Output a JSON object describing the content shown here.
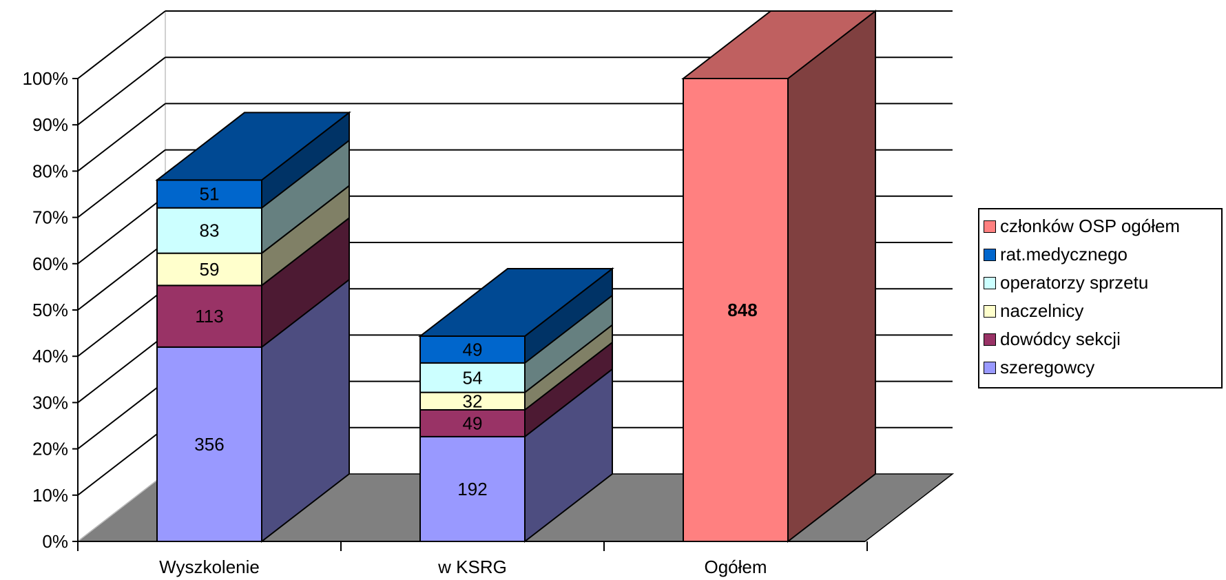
{
  "chart_data": {
    "type": "bar",
    "stacked": "percent",
    "three_d": true,
    "categories": [
      "Wyszkolenie",
      "w KSRG",
      "Ogółem"
    ],
    "y_ticks": [
      "0%",
      "10%",
      "20%",
      "30%",
      "40%",
      "50%",
      "60%",
      "70%",
      "80%",
      "90%",
      "100%"
    ],
    "ylim": [
      0,
      100
    ],
    "grid": true,
    "legend_position": "right",
    "series": [
      {
        "name": "szeregowcy",
        "color": "#9999ff",
        "values": [
          356,
          192,
          null
        ]
      },
      {
        "name": "dowódcy sekcji",
        "color": "#993366",
        "values": [
          113,
          49,
          null
        ]
      },
      {
        "name": "naczelnicy",
        "color": "#ffffcc",
        "values": [
          59,
          32,
          null
        ]
      },
      {
        "name": "operatorzy sprzetu",
        "color": "#ccffff",
        "values": [
          83,
          54,
          null
        ]
      },
      {
        "name": "rat.medycznego",
        "color": "#0066cc",
        "values": [
          51,
          49,
          null
        ]
      },
      {
        "name": "członków OSP ogółem",
        "color": "#ff8080",
        "values": [
          null,
          null,
          848
        ]
      }
    ],
    "total": 848,
    "legend_order": [
      "członków OSP ogółem",
      "rat.medycznego",
      "operatorzy sprzetu",
      "naczelnicy",
      "dowódcy sekcji",
      "szeregowcy"
    ]
  }
}
